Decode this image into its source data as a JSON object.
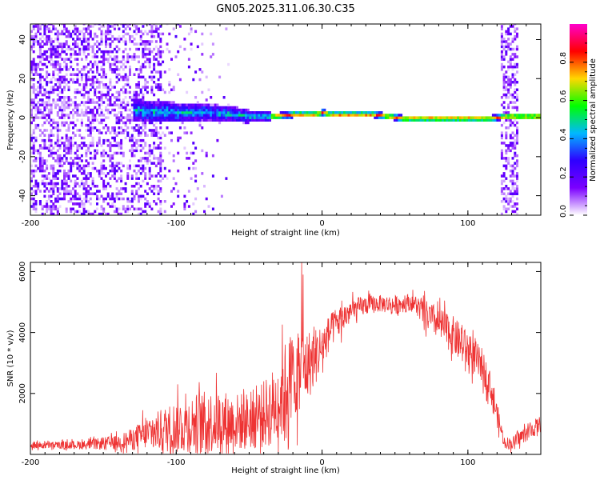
{
  "chart_data": [
    {
      "type": "heatmap",
      "title": "GN05.2025.311.06.30.C35",
      "xlabel": "Height of straight line (km)",
      "ylabel": "Frequency (Hz)",
      "xlim": [
        -200,
        150
      ],
      "ylim": [
        -50,
        48
      ],
      "xticks": [
        -200,
        -100,
        0,
        100
      ],
      "yticks": [
        -40,
        -20,
        0,
        20,
        40
      ],
      "colorbar": {
        "label": "Normalized spectral amplitude",
        "range": [
          0,
          1
        ],
        "ticks": [
          "0.0",
          "0.2",
          "0.4",
          "0.6",
          "0.8"
        ],
        "stops": [
          "#ffffff",
          "#7b00ff",
          "#2e00ff",
          "#00b8ff",
          "#00ff00",
          "#ffd700",
          "#ff0000",
          "#ff00cc"
        ]
      },
      "ridge": {
        "description": "dominant frequency vs height",
        "x": [
          -160,
          -130,
          -100,
          -80,
          -60,
          -50,
          -42,
          -35,
          -20,
          -5,
          0,
          5,
          20,
          35,
          45,
          55,
          65,
          80,
          100,
          115,
          125,
          135,
          150
        ],
        "y": [
          4,
          3,
          2,
          2,
          1,
          0,
          0,
          0,
          1,
          1,
          2,
          1,
          1,
          1,
          0,
          -1,
          -1,
          -1,
          -1,
          -1,
          0,
          0,
          0
        ]
      },
      "noise_regions": [
        {
          "x": [
            -200,
            -110
          ],
          "level": "broadband noise"
        },
        {
          "x": [
            122,
            133
          ],
          "level": "broadband noise"
        }
      ]
    },
    {
      "type": "line",
      "title": "",
      "xlabel": "Height of straight line (km)",
      "ylabel": "SNR (10 * v/v)",
      "xlim": [
        -200,
        150
      ],
      "ylim": [
        0,
        6300
      ],
      "xticks": [
        -200,
        -100,
        0,
        100
      ],
      "yticks": [
        2000,
        4000,
        6000
      ],
      "color": "#ee3333",
      "envelope": {
        "x": [
          -200,
          -180,
          -160,
          -140,
          -130,
          -120,
          -110,
          -100,
          -90,
          -80,
          -70,
          -60,
          -50,
          -40,
          -30,
          -25,
          -20,
          -15,
          -10,
          -5,
          0,
          5,
          10,
          20,
          30,
          40,
          50,
          60,
          65,
          70,
          80,
          90,
          100,
          110,
          115,
          120,
          125,
          130,
          140,
          150
        ],
        "base": [
          300,
          300,
          320,
          400,
          500,
          650,
          800,
          900,
          1000,
          1050,
          1100,
          1050,
          1100,
          1300,
          1700,
          2200,
          2600,
          2700,
          2900,
          3200,
          3500,
          4000,
          4300,
          4700,
          4900,
          4950,
          4900,
          5000,
          4900,
          4600,
          4300,
          3900,
          3400,
          2900,
          2300,
          1300,
          400,
          350,
          700,
          1000
        ],
        "amp": [
          150,
          150,
          200,
          300,
          450,
          600,
          900,
          1100,
          1200,
          1300,
          1300,
          1200,
          1200,
          1400,
          1700,
          2000,
          1900,
          1500,
          1500,
          1200,
          1000,
          700,
          700,
          500,
          400,
          350,
          400,
          350,
          400,
          600,
          700,
          800,
          800,
          700,
          600,
          500,
          250,
          250,
          350,
          350
        ]
      },
      "spikes": [
        {
          "x": -14,
          "y": 6300
        },
        {
          "x": -13,
          "y": 5900
        },
        {
          "x": -17,
          "y": 300
        },
        {
          "x": -123,
          "y": 1450
        }
      ]
    }
  ]
}
